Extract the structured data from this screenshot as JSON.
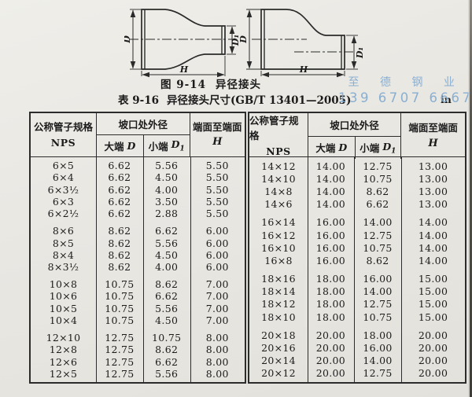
{
  "figure": {
    "caption_label": "图 9-14",
    "caption_text": "异径接头",
    "labels": {
      "d": "D",
      "d1": "D₁",
      "h": "H"
    }
  },
  "table_caption": {
    "label": "表 9-16",
    "title": "异径接头尺寸(GB/T 13401—2005)",
    "unit": "in"
  },
  "watermark": {
    "line1": "至 德 钢 业",
    "line2": "139 6707 6667",
    "color": "#7fa9d0"
  },
  "table": {
    "headers": {
      "nps": "公称管子规格",
      "nps_sub": "NPS",
      "od_group": "坡口处外径",
      "large_end": "大端",
      "large_end_sym": "D",
      "small_end": "小端",
      "small_end_sym": "D",
      "small_end_sub": "1",
      "end_to_end": "端面至端面",
      "end_to_end_sym": "H"
    },
    "left_groups": [
      [
        [
          "6×5",
          "6.62",
          "5.56",
          "5.50"
        ],
        [
          "6×4",
          "6.62",
          "4.50",
          "5.50"
        ],
        [
          "6×3½",
          "6.62",
          "4.00",
          "5.50"
        ],
        [
          "6×3",
          "6.62",
          "3.50",
          "5.50"
        ],
        [
          "6×2½",
          "6.62",
          "2.88",
          "5.50"
        ]
      ],
      [
        [
          "8×6",
          "8.62",
          "6.62",
          "6.00"
        ],
        [
          "8×5",
          "8.62",
          "5.56",
          "6.00"
        ],
        [
          "8×4",
          "8.62",
          "4.50",
          "6.00"
        ],
        [
          "8×3½",
          "8.62",
          "4.00",
          "6.00"
        ]
      ],
      [
        [
          "10×8",
          "10.75",
          "8.62",
          "7.00"
        ],
        [
          "10×6",
          "10.75",
          "6.62",
          "7.00"
        ],
        [
          "10×5",
          "10.75",
          "5.56",
          "7.00"
        ],
        [
          "10×4",
          "10.75",
          "4.50",
          "7.00"
        ]
      ],
      [
        [
          "12×10",
          "12.75",
          "10.75",
          "8.00"
        ],
        [
          "12×8",
          "12.75",
          "8.62",
          "8.00"
        ],
        [
          "12×6",
          "12.75",
          "6.62",
          "8.00"
        ],
        [
          "12×5",
          "12.75",
          "5.56",
          "8.00"
        ]
      ]
    ],
    "right_groups": [
      [
        [
          "14×12",
          "14.00",
          "12.75",
          "13.00"
        ],
        [
          "14×10",
          "14.00",
          "10.75",
          "13.00"
        ],
        [
          "14×8",
          "14.00",
          "8.62",
          "13.00"
        ],
        [
          "14×6",
          "14.00",
          "6.62",
          "13.00"
        ]
      ],
      [
        [
          "16×14",
          "16.00",
          "14.00",
          "14.00"
        ],
        [
          "16×12",
          "16.00",
          "12.75",
          "14.00"
        ],
        [
          "16×10",
          "16.00",
          "10.75",
          "14.00"
        ],
        [
          "16×8",
          "16.00",
          "8.62",
          "14.00"
        ]
      ],
      [
        [
          "18×16",
          "18.00",
          "16.00",
          "15.00"
        ],
        [
          "18×14",
          "18.00",
          "14.00",
          "15.00"
        ],
        [
          "18×12",
          "18.00",
          "12.75",
          "15.00"
        ],
        [
          "18×10",
          "18.00",
          "10.75",
          "15.00"
        ]
      ],
      [
        [
          "20×18",
          "20.00",
          "18.00",
          "20.00"
        ],
        [
          "20×16",
          "20.00",
          "16.00",
          "20.00"
        ],
        [
          "20×14",
          "20.00",
          "14.00",
          "20.00"
        ],
        [
          "20×12",
          "20.00",
          "12.75",
          "20.00"
        ]
      ]
    ]
  }
}
